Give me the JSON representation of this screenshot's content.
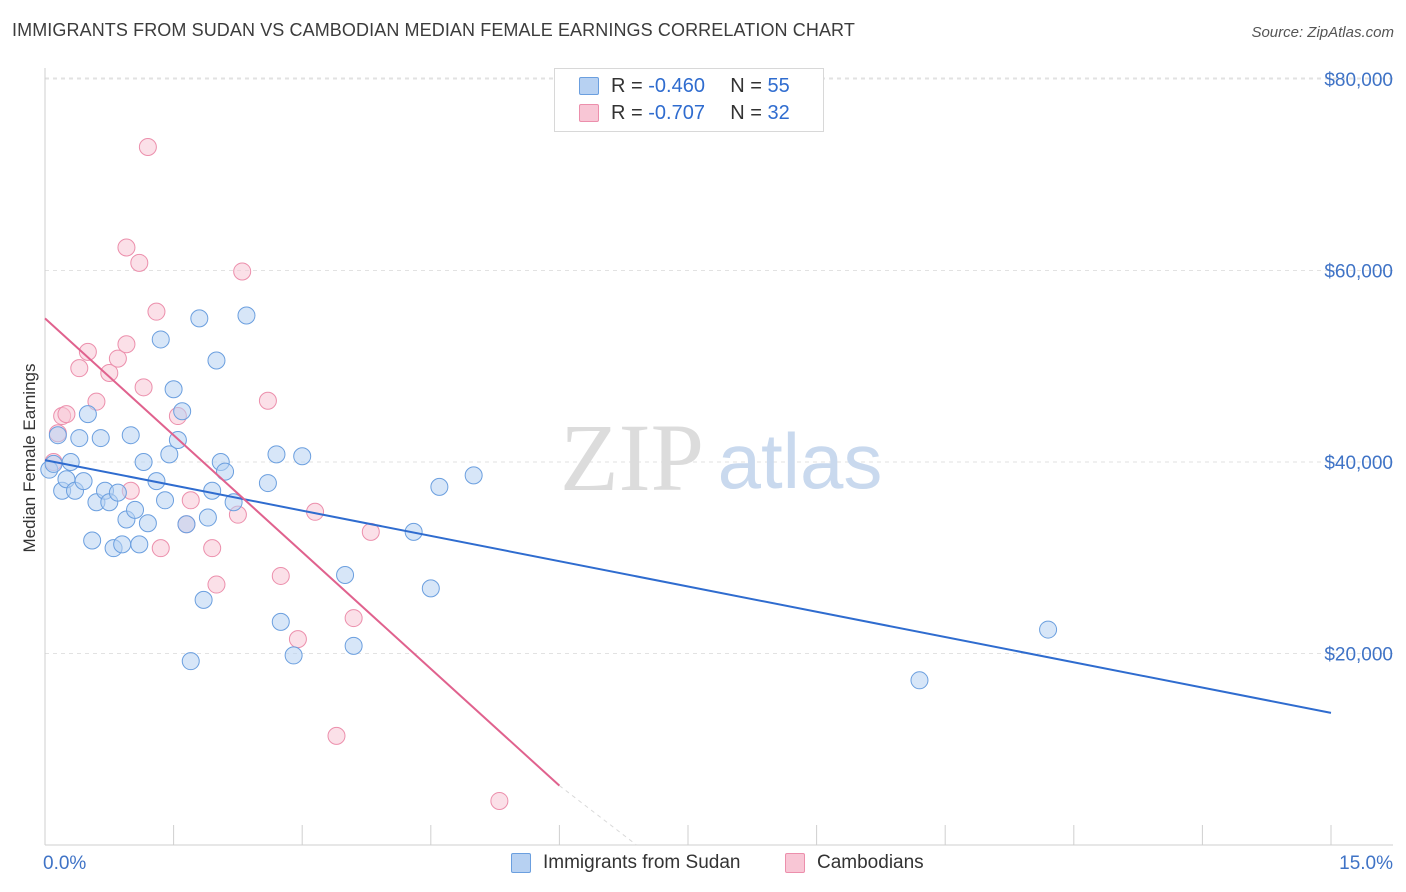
{
  "title": "IMMIGRANTS FROM SUDAN VS CAMBODIAN MEDIAN FEMALE EARNINGS CORRELATION CHART",
  "source": "Source: ZipAtlas.com",
  "watermark": {
    "zip": "ZIP",
    "atlas": "atlas"
  },
  "legend": {
    "rows": [
      {
        "r_label": "R =",
        "r_value": "-0.460",
        "n_label": "N =",
        "n_value": "55"
      },
      {
        "r_label": "R =",
        "r_value": "-0.707",
        "n_label": "N =",
        "n_value": "32"
      }
    ]
  },
  "colors": {
    "sudan_fill": "#b7d1f2",
    "sudan_stroke": "#6b9fdf",
    "sudan_line": "#2f6ccf",
    "camb_fill": "#f8c6d5",
    "camb_stroke": "#ec8fac",
    "camb_line": "#e0628e",
    "grid": "#e2e2e2",
    "axis_text": "#3f73c6"
  },
  "chart_data": {
    "type": "scatter",
    "title": "IMMIGRANTS FROM SUDAN VS CAMBODIAN MEDIAN FEMALE EARNINGS CORRELATION CHART",
    "xlabel": "",
    "ylabel": "Median Female Earnings",
    "xlim": [
      0,
      15
    ],
    "ylim": [
      0,
      82000
    ],
    "x_tick_labels": [
      "0.0%",
      "15.0%"
    ],
    "y_ticks": [
      {
        "value": 20000,
        "label": "$20,000"
      },
      {
        "value": 40000,
        "label": "$40,000"
      },
      {
        "value": 60000,
        "label": "$60,000"
      },
      {
        "value": 80000,
        "label": "$80,000"
      }
    ],
    "grid": true,
    "legend_position": "top-center",
    "series": [
      {
        "name": "Immigrants from Sudan",
        "trend": {
          "x0": 0.0,
          "y0": 40200,
          "x1": 15.0,
          "y1": 13800
        },
        "points": [
          [
            0.05,
            39200
          ],
          [
            0.1,
            39800
          ],
          [
            0.15,
            42800
          ],
          [
            0.2,
            37000
          ],
          [
            0.25,
            38200
          ],
          [
            0.3,
            40000
          ],
          [
            0.35,
            37000
          ],
          [
            0.4,
            42500
          ],
          [
            0.45,
            38000
          ],
          [
            0.5,
            45000
          ],
          [
            0.55,
            31800
          ],
          [
            0.6,
            35800
          ],
          [
            0.65,
            42500
          ],
          [
            0.7,
            37000
          ],
          [
            0.75,
            35800
          ],
          [
            0.8,
            31000
          ],
          [
            0.85,
            36800
          ],
          [
            0.9,
            31400
          ],
          [
            0.95,
            34000
          ],
          [
            1.0,
            42800
          ],
          [
            1.05,
            35000
          ],
          [
            1.1,
            31400
          ],
          [
            1.15,
            40000
          ],
          [
            1.2,
            33600
          ],
          [
            1.3,
            38000
          ],
          [
            1.35,
            52800
          ],
          [
            1.4,
            36000
          ],
          [
            1.45,
            40800
          ],
          [
            1.5,
            47600
          ],
          [
            1.55,
            42300
          ],
          [
            1.6,
            45300
          ],
          [
            1.65,
            33500
          ],
          [
            1.7,
            19200
          ],
          [
            1.8,
            55000
          ],
          [
            1.85,
            25600
          ],
          [
            1.9,
            34200
          ],
          [
            1.95,
            37000
          ],
          [
            2.0,
            50600
          ],
          [
            2.05,
            40000
          ],
          [
            2.1,
            39000
          ],
          [
            2.2,
            35800
          ],
          [
            2.35,
            55300
          ],
          [
            2.6,
            37800
          ],
          [
            2.7,
            40800
          ],
          [
            2.75,
            23300
          ],
          [
            2.9,
            19800
          ],
          [
            3.0,
            40600
          ],
          [
            3.5,
            28200
          ],
          [
            3.6,
            20800
          ],
          [
            4.3,
            32700
          ],
          [
            4.5,
            26800
          ],
          [
            4.6,
            37400
          ],
          [
            5.0,
            38600
          ],
          [
            10.2,
            17200
          ],
          [
            11.7,
            22500
          ]
        ]
      },
      {
        "name": "Cambodians",
        "trend": {
          "x0": 0.0,
          "y0": 55000,
          "x1": 6.0,
          "y1": 6200,
          "dash_x1": 6.9,
          "dash_y1": -1000
        },
        "points": [
          [
            0.1,
            40000
          ],
          [
            0.15,
            43000
          ],
          [
            0.2,
            44800
          ],
          [
            0.25,
            45000
          ],
          [
            0.4,
            49800
          ],
          [
            0.5,
            51500
          ],
          [
            0.6,
            46300
          ],
          [
            0.75,
            49300
          ],
          [
            0.85,
            50800
          ],
          [
            0.95,
            52300
          ],
          [
            0.95,
            62400
          ],
          [
            1.0,
            37000
          ],
          [
            1.1,
            60800
          ],
          [
            1.15,
            47800
          ],
          [
            1.2,
            72900
          ],
          [
            1.3,
            55700
          ],
          [
            1.35,
            31000
          ],
          [
            1.55,
            44800
          ],
          [
            1.65,
            33500
          ],
          [
            1.7,
            36000
          ],
          [
            1.95,
            31000
          ],
          [
            2.0,
            27200
          ],
          [
            2.25,
            34500
          ],
          [
            2.3,
            59900
          ],
          [
            2.6,
            46400
          ],
          [
            2.75,
            28100
          ],
          [
            2.95,
            21500
          ],
          [
            3.15,
            34800
          ],
          [
            3.4,
            11400
          ],
          [
            3.6,
            23700
          ],
          [
            3.8,
            32700
          ],
          [
            5.3,
            4600
          ]
        ]
      }
    ]
  },
  "bottom_legend": [
    {
      "label": "Immigrants from Sudan"
    },
    {
      "label": "Cambodians"
    }
  ]
}
